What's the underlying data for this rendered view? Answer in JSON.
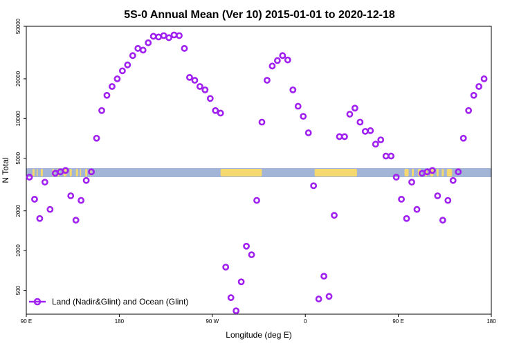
{
  "chart_data": {
    "type": "scatter",
    "title": "5S-0 Annual Mean (Ver 10)   2015-01-01 to 2020-12-18",
    "xlabel": "Longitude (deg E)",
    "ylabel": "N Total",
    "x_ticks": [
      {
        "value": 90,
        "label": "90 E"
      },
      {
        "value": 180,
        "label": "180"
      },
      {
        "value": 270,
        "label": "90 W"
      },
      {
        "value": 360,
        "label": "0"
      },
      {
        "value": 450,
        "label": "90 E"
      },
      {
        "value": 540,
        "label": "180"
      }
    ],
    "xlim": [
      90,
      540
    ],
    "y_scale": "log",
    "ylim": [
      330,
      50000
    ],
    "y_ticks": [
      500,
      1000,
      2000,
      5000,
      10000,
      20000,
      50000
    ],
    "legend": {
      "position": "bottom-left",
      "label": "Land (Nadir&Glint) and Ocean (Glint)"
    },
    "series": [
      {
        "name": "Land (Nadir&Glint) and Ocean (Glint)",
        "color": "#a020f0",
        "points": [
          [
            93,
            3600
          ],
          [
            98,
            2450
          ],
          [
            103,
            1750
          ],
          [
            108,
            3300
          ],
          [
            113,
            2050
          ],
          [
            118,
            3850
          ],
          [
            123,
            3950
          ],
          [
            128,
            4050
          ],
          [
            133,
            2600
          ],
          [
            138,
            1700
          ],
          [
            143,
            2400
          ],
          [
            148,
            3400
          ],
          [
            153,
            3950
          ],
          [
            158,
            7100
          ],
          [
            163,
            11500
          ],
          [
            168,
            15000
          ],
          [
            173,
            17500
          ],
          [
            178,
            20000
          ],
          [
            183,
            23000
          ],
          [
            188,
            25500
          ],
          [
            193,
            30000
          ],
          [
            198,
            34000
          ],
          [
            203,
            33000
          ],
          [
            208,
            37500
          ],
          [
            213,
            42000
          ],
          [
            218,
            41500
          ],
          [
            223,
            42500
          ],
          [
            228,
            41000
          ],
          [
            233,
            43000
          ],
          [
            238,
            42500
          ],
          [
            243,
            34000
          ],
          [
            248,
            20500
          ],
          [
            253,
            19500
          ],
          [
            258,
            17500
          ],
          [
            263,
            16500
          ],
          [
            268,
            14200
          ],
          [
            273,
            11500
          ],
          [
            278,
            11000
          ],
          [
            283,
            750
          ],
          [
            288,
            440
          ],
          [
            293,
            350
          ],
          [
            298,
            580
          ],
          [
            303,
            1080
          ],
          [
            308,
            930
          ],
          [
            313,
            2400
          ],
          [
            318,
            9400
          ],
          [
            323,
            19500
          ],
          [
            328,
            25000
          ],
          [
            333,
            27500
          ],
          [
            338,
            30000
          ],
          [
            343,
            27800
          ],
          [
            348,
            16500
          ],
          [
            353,
            12400
          ],
          [
            358,
            10400
          ],
          [
            363,
            7800
          ],
          [
            368,
            3100
          ],
          [
            373,
            430
          ],
          [
            378,
            640
          ],
          [
            383,
            450
          ],
          [
            388,
            1850
          ],
          [
            393,
            7300
          ],
          [
            398,
            7300
          ],
          [
            403,
            10800
          ],
          [
            408,
            12000
          ],
          [
            413,
            9400
          ],
          [
            418,
            8000
          ],
          [
            423,
            8100
          ],
          [
            428,
            6400
          ],
          [
            433,
            6900
          ],
          [
            438,
            5200
          ],
          [
            443,
            5200
          ],
          [
            448,
            3600
          ],
          [
            453,
            2450
          ],
          [
            458,
            1750
          ],
          [
            463,
            3300
          ],
          [
            468,
            2050
          ],
          [
            473,
            3850
          ],
          [
            478,
            3950
          ],
          [
            483,
            4050
          ],
          [
            488,
            2600
          ],
          [
            493,
            1700
          ],
          [
            498,
            2400
          ],
          [
            503,
            3400
          ],
          [
            508,
            3950
          ],
          [
            513,
            7100
          ],
          [
            518,
            11500
          ],
          [
            523,
            15000
          ],
          [
            528,
            17500
          ],
          [
            533,
            20000
          ]
        ]
      }
    ],
    "map_strip": {
      "ocean_color": "#a3b5d6",
      "land_color": "#f5d86e"
    }
  }
}
